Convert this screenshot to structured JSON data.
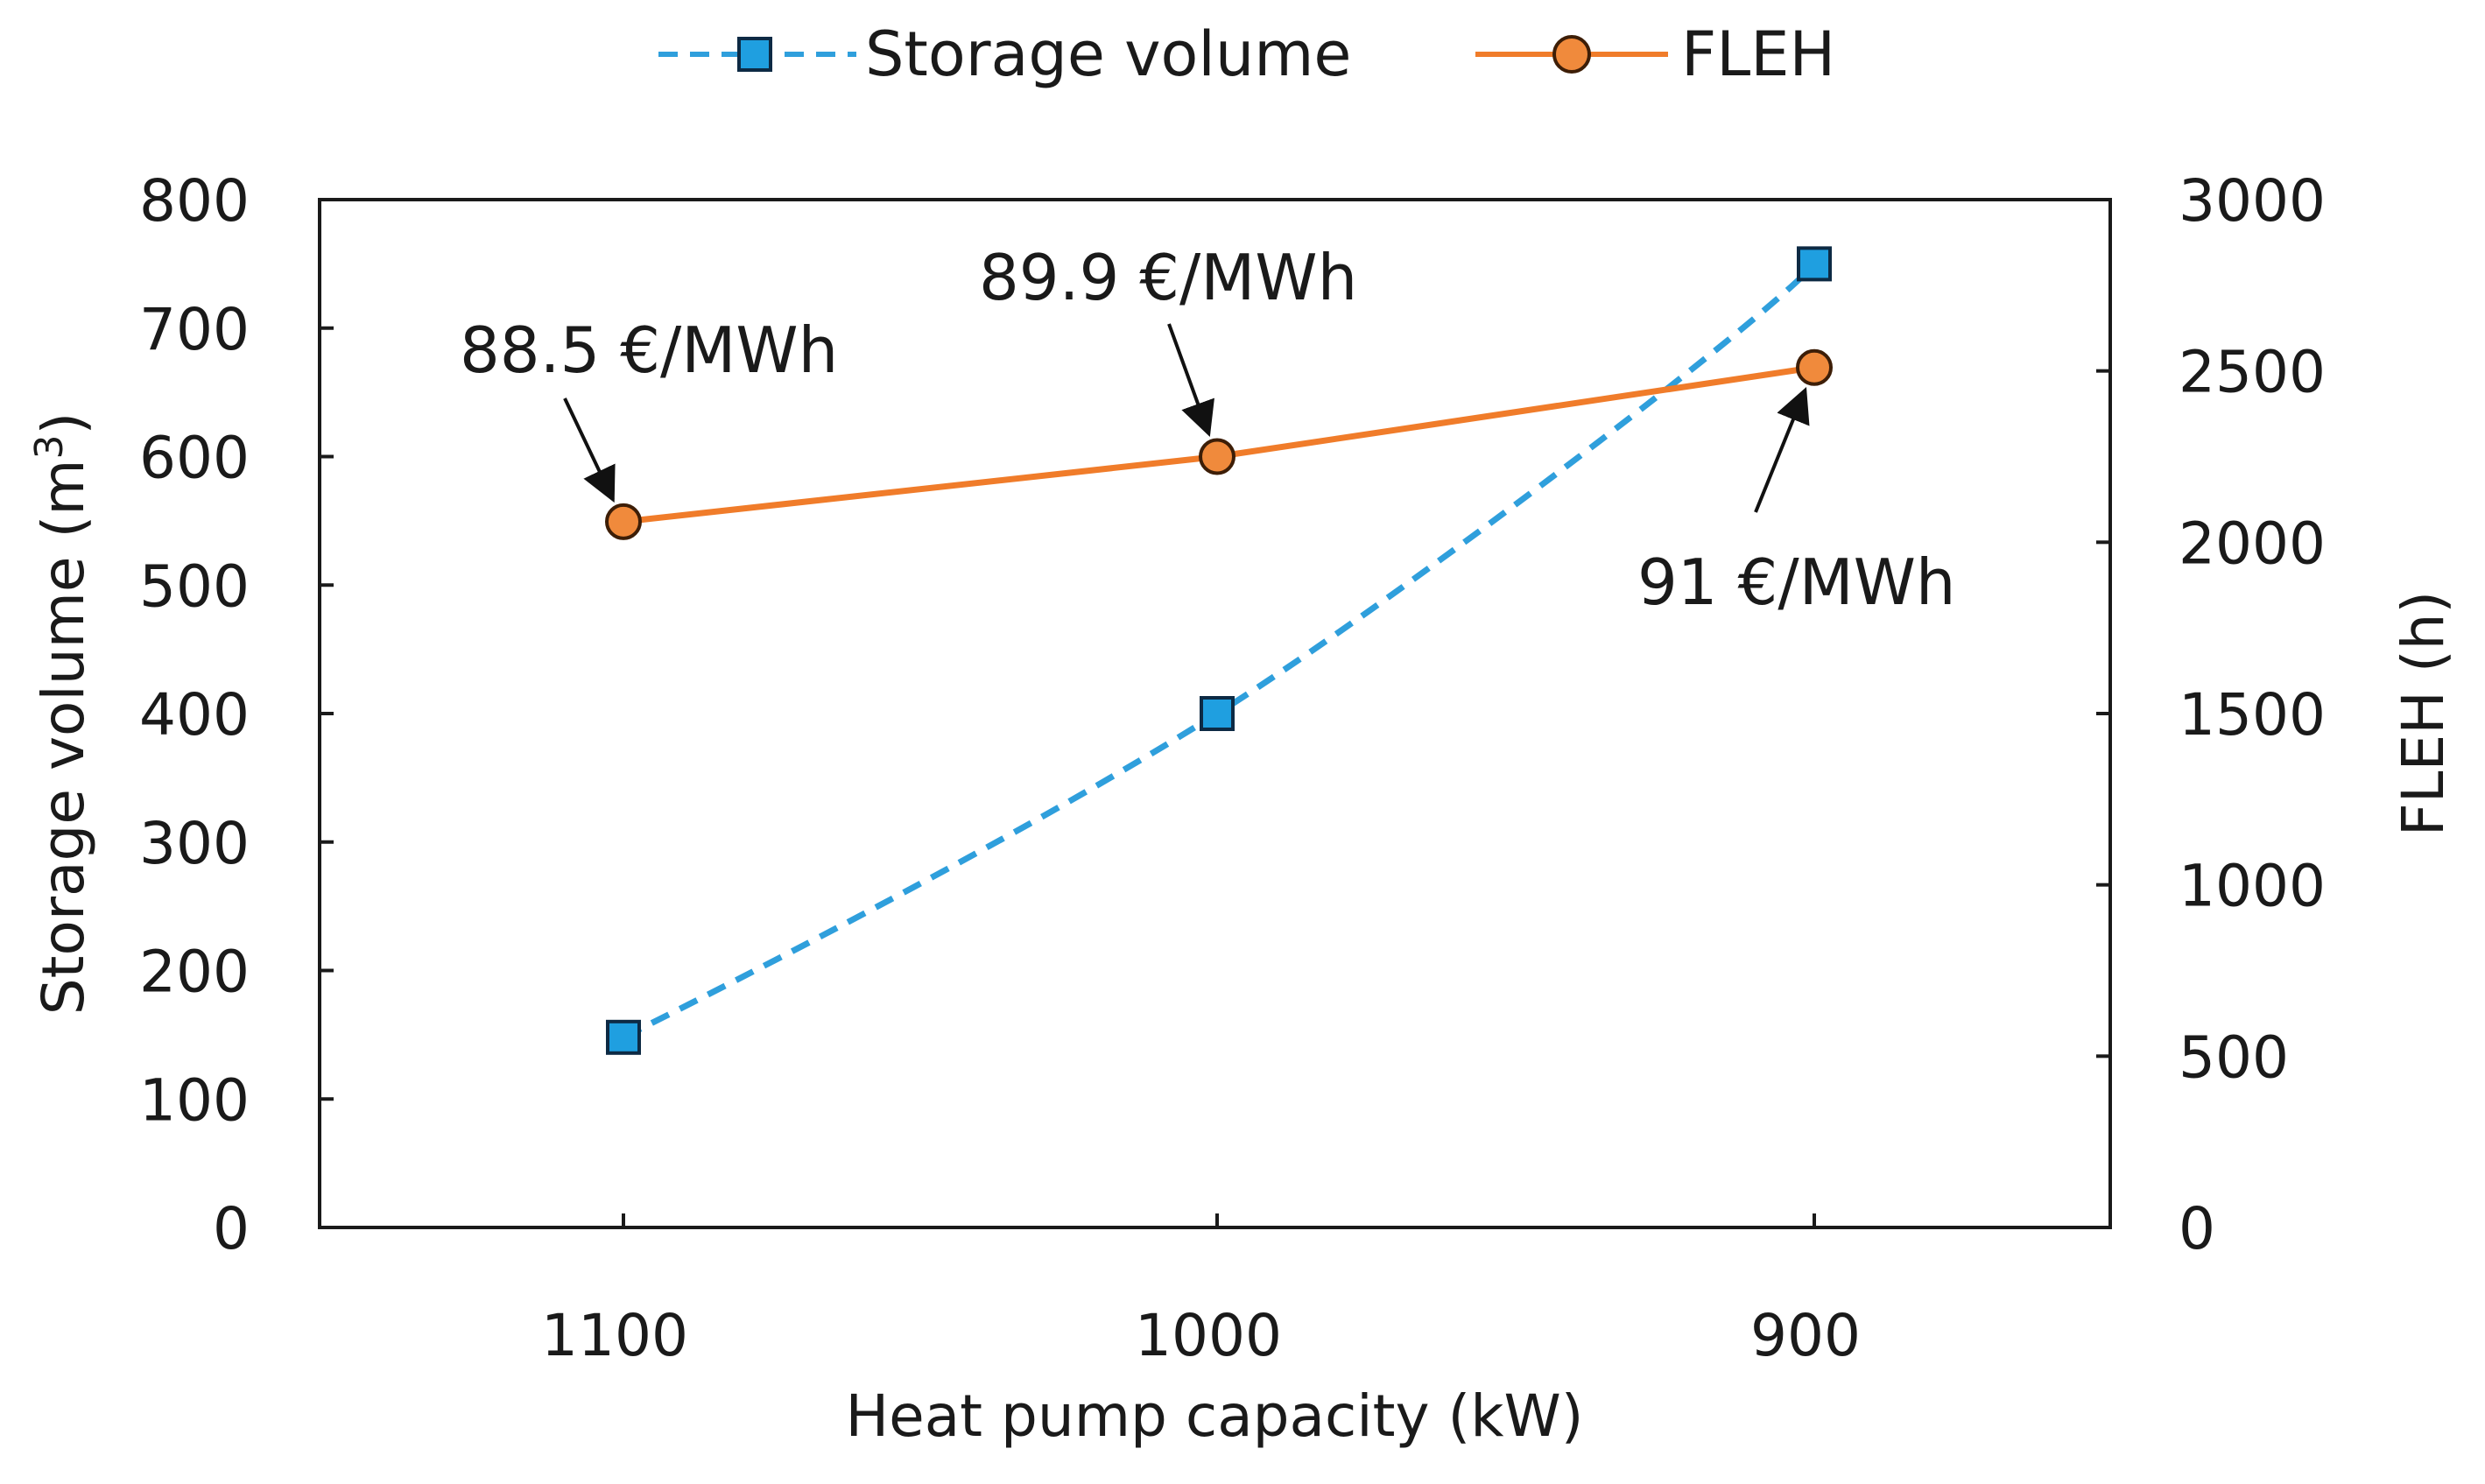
{
  "chart_data": {
    "type": "line",
    "title": "",
    "categories": [
      "1100",
      "1000",
      "900"
    ],
    "xlabel": "Heat pump capacity (kW)",
    "ylabel_left": "Storage volume  (m",
    "ylabel_left_sup": "3",
    "ylabel_left_close": ")",
    "ylabel_right": "FLEH (h)",
    "ylim_left": [
      0,
      800
    ],
    "ylim_right": [
      0,
      3000
    ],
    "yticks_left": [
      0,
      100,
      200,
      300,
      400,
      500,
      600,
      700,
      800
    ],
    "yticks_right": [
      0,
      500,
      1000,
      1500,
      2000,
      2500,
      3000
    ],
    "grid": false,
    "legend_position": "top-center",
    "series": [
      {
        "name": "Storage volume",
        "axis": "left",
        "style": "dashed",
        "marker": "square",
        "color": "#2f9fdc",
        "marker_fill": "#1f9fe0",
        "values": [
          148,
          400,
          750
        ]
      },
      {
        "name": "FLEH",
        "axis": "right",
        "style": "solid",
        "marker": "circle",
        "color": "#f07c2a",
        "marker_fill": "#f08a3c",
        "values": [
          2060,
          2250,
          2510
        ]
      }
    ],
    "annotations": [
      {
        "text": "88.5 €/MWh",
        "category_index": 0,
        "series": "FLEH"
      },
      {
        "text": "89.9 €/MWh",
        "category_index": 1,
        "series": "FLEH"
      },
      {
        "text": "91 €/MWh",
        "category_index": 2,
        "series": "FLEH"
      }
    ]
  }
}
